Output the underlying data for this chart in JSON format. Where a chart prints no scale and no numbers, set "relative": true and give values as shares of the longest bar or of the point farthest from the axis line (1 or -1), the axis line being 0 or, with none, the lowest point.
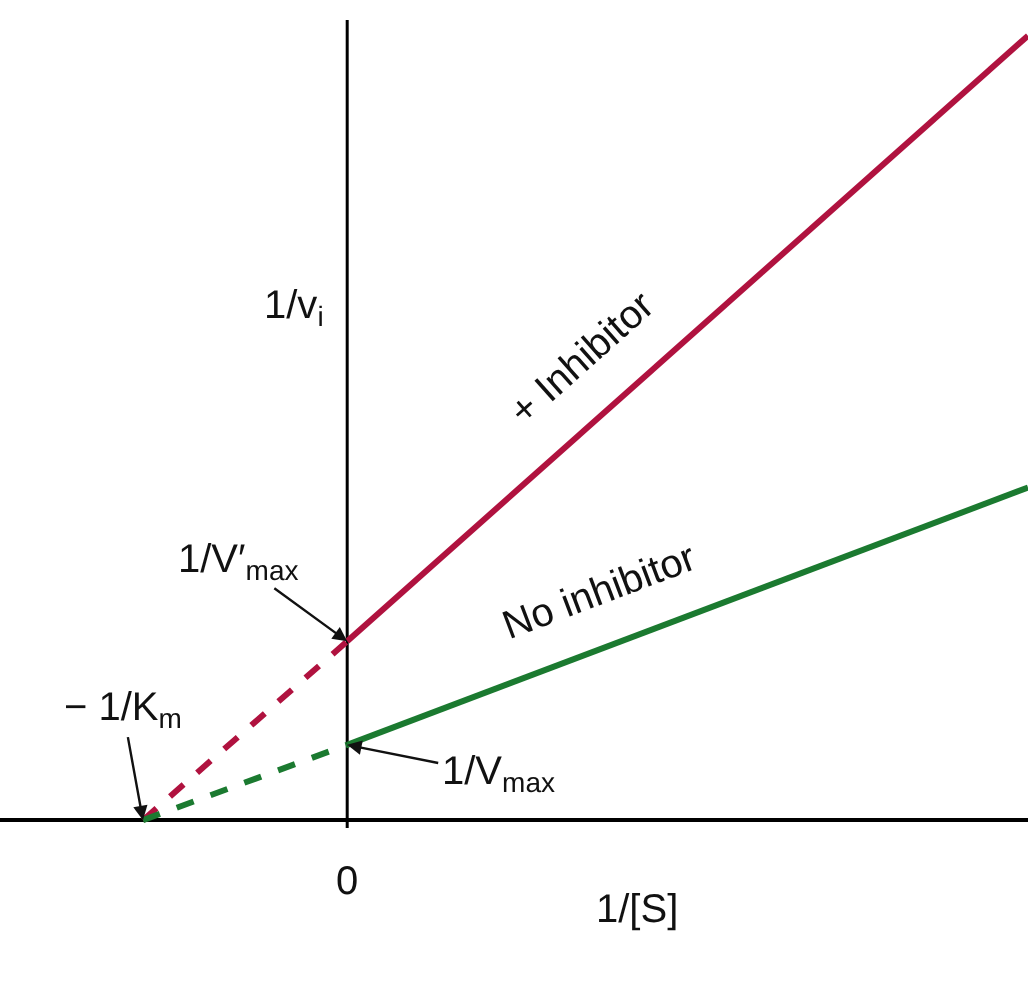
{
  "chart_data": {
    "type": "line",
    "relative": true,
    "xlabel": "1/[S]",
    "ylabel": "1/v$_{i}$",
    "categories": [
      null,
      null,
      null,
      null,
      null,
      null,
      null,
      null,
      null,
      null,
      null,
      null,
      null,
      null
    ],
    "series": [
      {
        "color": "#b0123f",
        "line_style": "dashed",
        "values": [
          0,
          null,
          null,
          0.228,
          null,
          null,
          null,
          null,
          null,
          null,
          null,
          null,
          null,
          null
        ]
      },
      {
        "name": "+ Inhibitor",
        "color": "#b0123f",
        "line_style": "solid",
        "values": [
          null,
          null,
          null,
          0.228,
          null,
          null,
          null,
          null,
          null,
          null,
          null,
          null,
          null,
          1
        ]
      },
      {
        "color": "#1b7a30",
        "line_style": "dashed",
        "values": [
          0,
          null,
          null,
          0.096,
          null,
          null,
          null,
          null,
          null,
          null,
          null,
          null,
          null,
          null
        ]
      },
      {
        "name": "No inhibitor",
        "color": "#1b7a30",
        "line_style": "solid",
        "values": [
          null,
          null,
          null,
          0.096,
          null,
          null,
          null,
          null,
          null,
          null,
          null,
          null,
          null,
          0.424
        ]
      }
    ],
    "annotations": [
      "1/V′$_{max}$",
      "− 1/K$_{m}$",
      "1/V$_{max}$",
      "0"
    ]
  }
}
